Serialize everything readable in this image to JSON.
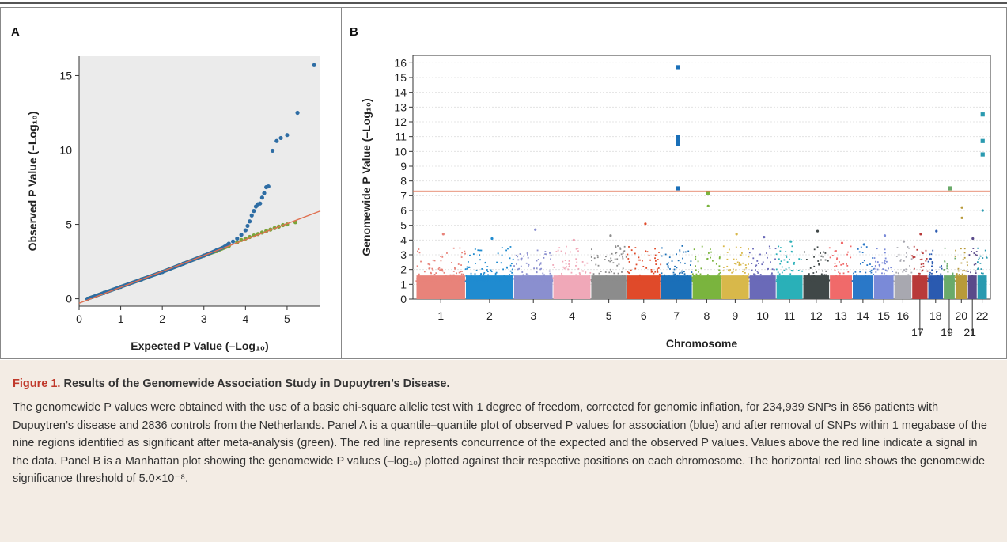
{
  "caption": {
    "figure_label": "Figure 1.",
    "title": "Results of the Genomewide Association Study in Dupuytren’s Disease.",
    "body": "The genomewide P values were obtained with the use of a basic chi-square allelic test with 1 degree of freedom, corrected for genomic inflation, for 234,939 SNPs in 856 patients with Dupuytren’s disease and 2836 controls from the Netherlands. Panel A is a quantile–quantile plot of observed P values for association (blue) and after removal of SNPs within 1 megabase of the nine regions identified as significant after meta-analysis (green). The red line represents concurrence of the expected and the observed P values. Values above the red line indicate a signal in the data. Panel B is a Manhattan plot showing the genomewide P values (–log₁₀) plotted against their respective positions on each chromosome. The horizontal red line shows the genomewide significance threshold of 5.0×10⁻⁸."
  },
  "colors": {
    "blue": "#2e6da4",
    "green": "#7aa43a",
    "red_line": "#e07050",
    "caption_bg": "#f3ece4",
    "figure_label": "#c0392b"
  },
  "chart_data": [
    {
      "panel": "A",
      "type": "scatter",
      "xlabel": "Expected P Value (–Log₁₀)",
      "ylabel": "Observed P Value (–Log₁₀)",
      "xlim": [
        0,
        5.8
      ],
      "ylim": [
        -0.5,
        16.3
      ],
      "xticks": [
        "0",
        "1",
        "2",
        "3",
        "4",
        "5"
      ],
      "yticks": [
        "0",
        "5",
        "10",
        "15"
      ],
      "grid": false,
      "background": "#ebebeb",
      "series": [
        {
          "color": "#7aa43a",
          "points": [
            [
              0.2,
              0.0
            ],
            [
              0.6,
              0.4
            ],
            [
              1.0,
              0.8
            ],
            [
              1.5,
              1.3
            ],
            [
              2.0,
              1.8
            ],
            [
              2.5,
              2.35
            ],
            [
              3.0,
              2.9
            ],
            [
              3.3,
              3.2
            ],
            [
              3.6,
              3.55
            ],
            [
              3.8,
              3.8
            ],
            [
              3.9,
              3.95
            ],
            [
              4.0,
              4.05
            ],
            [
              4.1,
              4.15
            ],
            [
              4.2,
              4.25
            ],
            [
              4.3,
              4.35
            ],
            [
              4.4,
              4.45
            ],
            [
              4.5,
              4.55
            ],
            [
              4.6,
              4.65
            ],
            [
              4.7,
              4.75
            ],
            [
              4.8,
              4.85
            ],
            [
              4.9,
              4.95
            ],
            [
              5.0,
              5.0
            ],
            [
              5.2,
              5.15
            ]
          ]
        },
        {
          "color": "#2e6da4",
          "points": [
            [
              0.2,
              0.0
            ],
            [
              0.6,
              0.4
            ],
            [
              1.0,
              0.8
            ],
            [
              1.5,
              1.3
            ],
            [
              2.0,
              1.8
            ],
            [
              2.5,
              2.35
            ],
            [
              3.0,
              2.9
            ],
            [
              3.3,
              3.25
            ],
            [
              3.5,
              3.5
            ],
            [
              3.6,
              3.7
            ],
            [
              3.7,
              3.85
            ],
            [
              3.8,
              4.05
            ],
            [
              3.9,
              4.3
            ],
            [
              4.0,
              4.6
            ],
            [
              4.05,
              4.9
            ],
            [
              4.1,
              5.2
            ],
            [
              4.15,
              5.6
            ],
            [
              4.2,
              5.9
            ],
            [
              4.25,
              6.2
            ],
            [
              4.3,
              6.35
            ],
            [
              4.35,
              6.4
            ],
            [
              4.4,
              6.8
            ],
            [
              4.45,
              7.1
            ],
            [
              4.5,
              7.5
            ],
            [
              4.55,
              7.55
            ],
            [
              4.65,
              9.95
            ],
            [
              4.75,
              10.6
            ],
            [
              4.85,
              10.8
            ],
            [
              5.0,
              11.0
            ],
            [
              5.25,
              12.5
            ],
            [
              5.65,
              15.7
            ]
          ]
        },
        {
          "color": "#e07050",
          "line": true,
          "points": [
            [
              0,
              -0.3
            ],
            [
              5.8,
              5.9
            ]
          ]
        }
      ]
    },
    {
      "panel": "B",
      "type": "scatter",
      "subtype": "manhattan",
      "xlabel": "Chromosome",
      "ylabel": "Genomewide P Value (–Log₁₀)",
      "ylim": [
        0,
        16.5
      ],
      "yticks": [
        "0",
        "1",
        "2",
        "3",
        "4",
        "5",
        "6",
        "7",
        "8",
        "9",
        "10",
        "11",
        "12",
        "13",
        "14",
        "15",
        "16"
      ],
      "threshold": 7.3,
      "threshold_color": "#e07050",
      "categories": [
        "1",
        "2",
        "3",
        "4",
        "5",
        "6",
        "7",
        "8",
        "9",
        "10",
        "11",
        "12",
        "13",
        "14",
        "15",
        "16",
        "17",
        "18",
        "19",
        "20",
        "21",
        "22"
      ],
      "chromosome_colors": [
        "#e8837a",
        "#1f8bd0",
        "#8a8fcf",
        "#f0a8b8",
        "#8c8c8c",
        "#e04a2a",
        "#1a6fb8",
        "#7ab43e",
        "#d8b84a",
        "#6a6ab8",
        "#2ab0b8",
        "#404848",
        "#f06a6a",
        "#2a78c8",
        "#7a8ad8",
        "#a8a8b0",
        "#b83a3a",
        "#2a5ab0",
        "#6aaa6a",
        "#b89a3a",
        "#5a4a8a",
        "#2a9ab0"
      ],
      "chromosome_widths": [
        249,
        243,
        198,
        191,
        181,
        171,
        159,
        146,
        141,
        136,
        135,
        134,
        115,
        107,
        103,
        90,
        81,
        78,
        59,
        63,
        48,
        51
      ],
      "peaks": [
        {
          "chromosome": "1",
          "value": 4.4
        },
        {
          "chromosome": "2",
          "value": 4.1
        },
        {
          "chromosome": "3",
          "value": 4.7
        },
        {
          "chromosome": "4",
          "value": 4.0
        },
        {
          "chromosome": "5",
          "value": 4.3
        },
        {
          "chromosome": "6",
          "value": 5.1
        },
        {
          "chromosome": "7",
          "value": 15.7
        },
        {
          "chromosome": "7",
          "value": 11.0
        },
        {
          "chromosome": "7",
          "value": 10.8
        },
        {
          "chromosome": "7",
          "value": 10.5
        },
        {
          "chromosome": "7",
          "value": 7.5
        },
        {
          "chromosome": "8",
          "value": 7.2
        },
        {
          "chromosome": "8",
          "value": 6.3
        },
        {
          "chromosome": "9",
          "value": 4.4
        },
        {
          "chromosome": "10",
          "value": 4.2
        },
        {
          "chromosome": "11",
          "value": 3.9
        },
        {
          "chromosome": "12",
          "value": 4.6
        },
        {
          "chromosome": "13",
          "value": 3.8
        },
        {
          "chromosome": "14",
          "value": 3.7
        },
        {
          "chromosome": "15",
          "value": 4.3
        },
        {
          "chromosome": "16",
          "value": 3.9
        },
        {
          "chromosome": "17",
          "value": 4.4
        },
        {
          "chromosome": "18",
          "value": 4.6
        },
        {
          "chromosome": "19",
          "value": 7.5
        },
        {
          "chromosome": "20",
          "value": 6.2
        },
        {
          "chromosome": "20",
          "value": 5.5
        },
        {
          "chromosome": "21",
          "value": 4.1
        },
        {
          "chromosome": "22",
          "value": 12.5
        },
        {
          "chromosome": "22",
          "value": 10.7
        },
        {
          "chromosome": "22",
          "value": 9.8
        },
        {
          "chromosome": "22",
          "value": 6.0
        }
      ]
    }
  ],
  "panels": {
    "a_label": "A",
    "b_label": "B"
  }
}
